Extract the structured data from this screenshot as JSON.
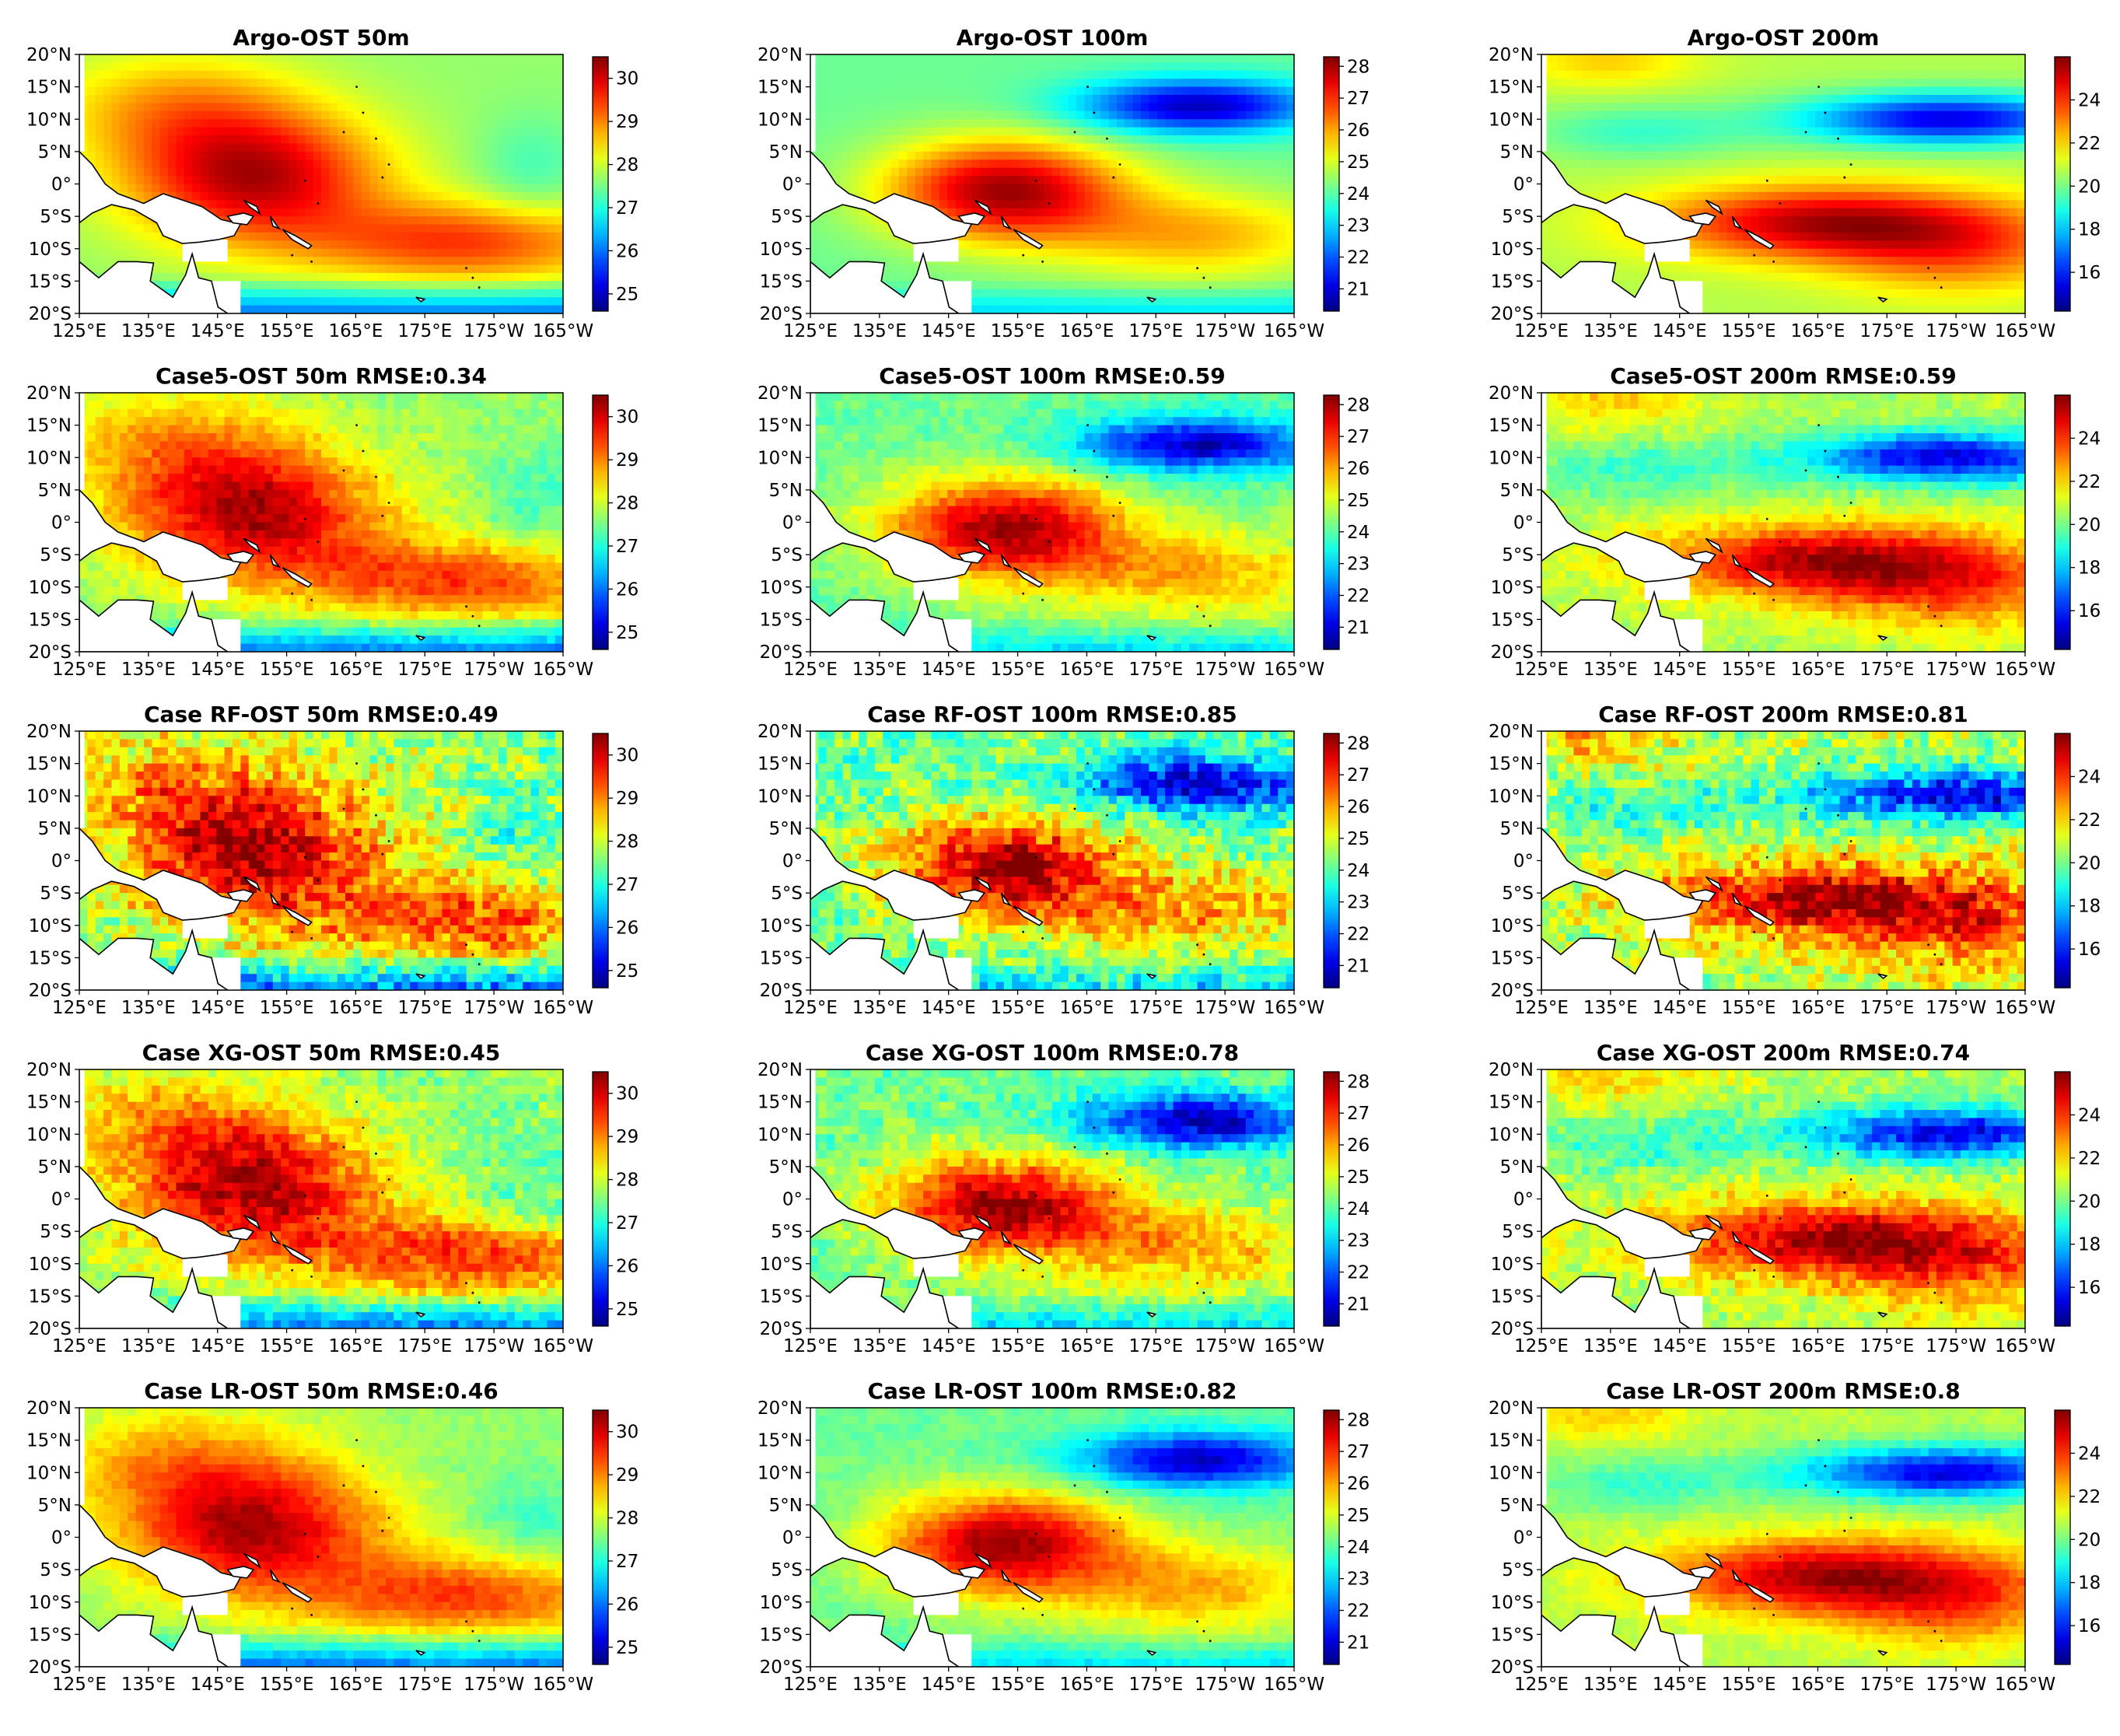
{
  "figure": {
    "lon_ticks": [
      "125°E",
      "135°E",
      "145°E",
      "155°E",
      "165°E",
      "175°E",
      "175°W",
      "165°W"
    ],
    "lat_ticks": [
      "20°N",
      "15°N",
      "10°N",
      "5°N",
      "0°",
      "5°S",
      "10°S",
      "15°S",
      "20°S"
    ],
    "lon_range": [
      125,
      200
    ],
    "lat_range": [
      -20,
      20
    ],
    "colormap": "jet",
    "colorbars": [
      {
        "depth": "50m",
        "ticks": [
          "30",
          "29",
          "28",
          "27",
          "26",
          "25"
        ],
        "range": [
          24.6,
          30.5
        ]
      },
      {
        "depth": "100m",
        "ticks": [
          "28",
          "27",
          "26",
          "25",
          "24",
          "23",
          "22",
          "21"
        ],
        "range": [
          20.3,
          28.3
        ]
      },
      {
        "depth": "200m",
        "ticks": [
          "24",
          "22",
          "20",
          "18",
          "16"
        ],
        "range": [
          14.2,
          26.0
        ]
      }
    ]
  },
  "panels": [
    {
      "title": "Argo-OST 50m",
      "row": 0,
      "col": 0,
      "noise": 0.0
    },
    {
      "title": "Argo-OST 100m",
      "row": 0,
      "col": 1,
      "noise": 0.0
    },
    {
      "title": "Argo-OST 200m",
      "row": 0,
      "col": 2,
      "noise": 0.0
    },
    {
      "title": "Case5-OST 50m  RMSE:0.34",
      "row": 1,
      "col": 0,
      "noise": 0.3
    },
    {
      "title": "Case5-OST 100m  RMSE:0.59",
      "row": 1,
      "col": 1,
      "noise": 0.3
    },
    {
      "title": "Case5-OST 200m  RMSE:0.59",
      "row": 1,
      "col": 2,
      "noise": 0.3
    },
    {
      "title": "Case RF-OST 50m  RMSE:0.49",
      "row": 2,
      "col": 0,
      "noise": 0.8
    },
    {
      "title": "Case RF-OST 100m  RMSE:0.85",
      "row": 2,
      "col": 1,
      "noise": 0.8
    },
    {
      "title": "Case RF-OST 200m  RMSE:0.81",
      "row": 2,
      "col": 2,
      "noise": 0.8
    },
    {
      "title": "Case XG-OST 50m  RMSE:0.45",
      "row": 3,
      "col": 0,
      "noise": 0.5
    },
    {
      "title": "Case XG-OST 100m  RMSE:0.78",
      "row": 3,
      "col": 1,
      "noise": 0.5
    },
    {
      "title": "Case XG-OST 200m  RMSE:0.74",
      "row": 3,
      "col": 2,
      "noise": 0.5
    },
    {
      "title": "Case LR-OST 50m  RMSE:0.46",
      "row": 4,
      "col": 0,
      "noise": 0.2
    },
    {
      "title": "Case LR-OST 100m  RMSE:0.82",
      "row": 4,
      "col": 1,
      "noise": 0.2
    },
    {
      "title": "Case LR-OST 200m  RMSE:0.8",
      "row": 4,
      "col": 2,
      "noise": 0.2
    }
  ]
}
